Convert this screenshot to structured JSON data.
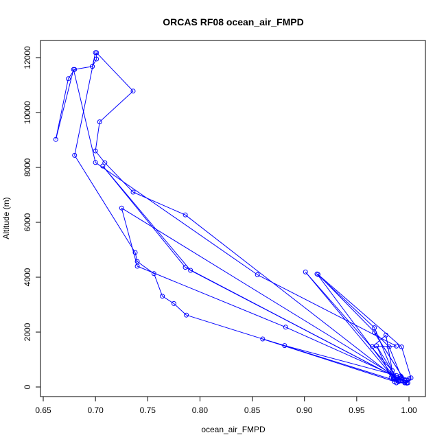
{
  "chart_data": {
    "type": "line",
    "title": "ORCAS RF08 ocean_air_FMPD",
    "xlabel": "ocean_air_FMPD",
    "ylabel": "Altitude (m)",
    "xlim": [
      0.65,
      1.0
    ],
    "ylim": [
      0,
      12000
    ],
    "x_ticks": [
      "0.65",
      "0.70",
      "0.75",
      "0.80",
      "0.85",
      "0.90",
      "0.95",
      "1.00"
    ],
    "y_ticks": [
      "0",
      "2000",
      "4000",
      "6000",
      "8000",
      "10000",
      "12000"
    ],
    "grid": false,
    "legend": "none",
    "color": "#0000ff",
    "series": [
      {
        "x": [
          0.697,
          0.701,
          0.701,
          0.736,
          0.704,
          0.7,
          0.709,
          0.736,
          0.786,
          0.988,
          0.985,
          0.901,
          0.988,
          0.983,
          0.912,
          0.967,
          0.984,
          0.978,
          0.965,
          0.988,
          0.855,
          0.7,
          0.679,
          0.662,
          0.674,
          0.68,
          0.697,
          0.7,
          0.68,
          0.738,
          0.74,
          0.756,
          0.764,
          0.775,
          0.787,
          0.99,
          0.983,
          0.969,
          0.99,
          0.986,
          0.992,
          0.988,
          0.998,
          1.0,
          0.881,
          0.86,
          0.986,
          0.996,
          0.998,
          1.002,
          0.993,
          0.913,
          0.981,
          0.993,
          0.985,
          0.996,
          0.967,
          0.996,
          0.882,
          0.74,
          0.725,
          0.996,
          0.786,
          0.707,
          0.791,
          0.996,
          0.988,
          0.992,
          0.999
        ],
        "y": [
          11680,
          11950,
          12180,
          10780,
          9660,
          8600,
          8170,
          7100,
          6270,
          300,
          350,
          4190,
          420,
          500,
          4120,
          2160,
          600,
          1890,
          1470,
          1490,
          4090,
          8180,
          11570,
          9020,
          11230,
          11570,
          11680,
          12180,
          8440,
          4900,
          4570,
          4130,
          3310,
          3040,
          2620,
          200,
          350,
          1500,
          200,
          300,
          260,
          150,
          150,
          300,
          1510,
          1750,
          200,
          150,
          140,
          330,
          1460,
          4100,
          1460,
          350,
          300,
          240,
          1980,
          240,
          2180,
          4400,
          6520,
          180,
          4360,
          8050,
          4250,
          180,
          350,
          400,
          150
        ]
      }
    ]
  }
}
